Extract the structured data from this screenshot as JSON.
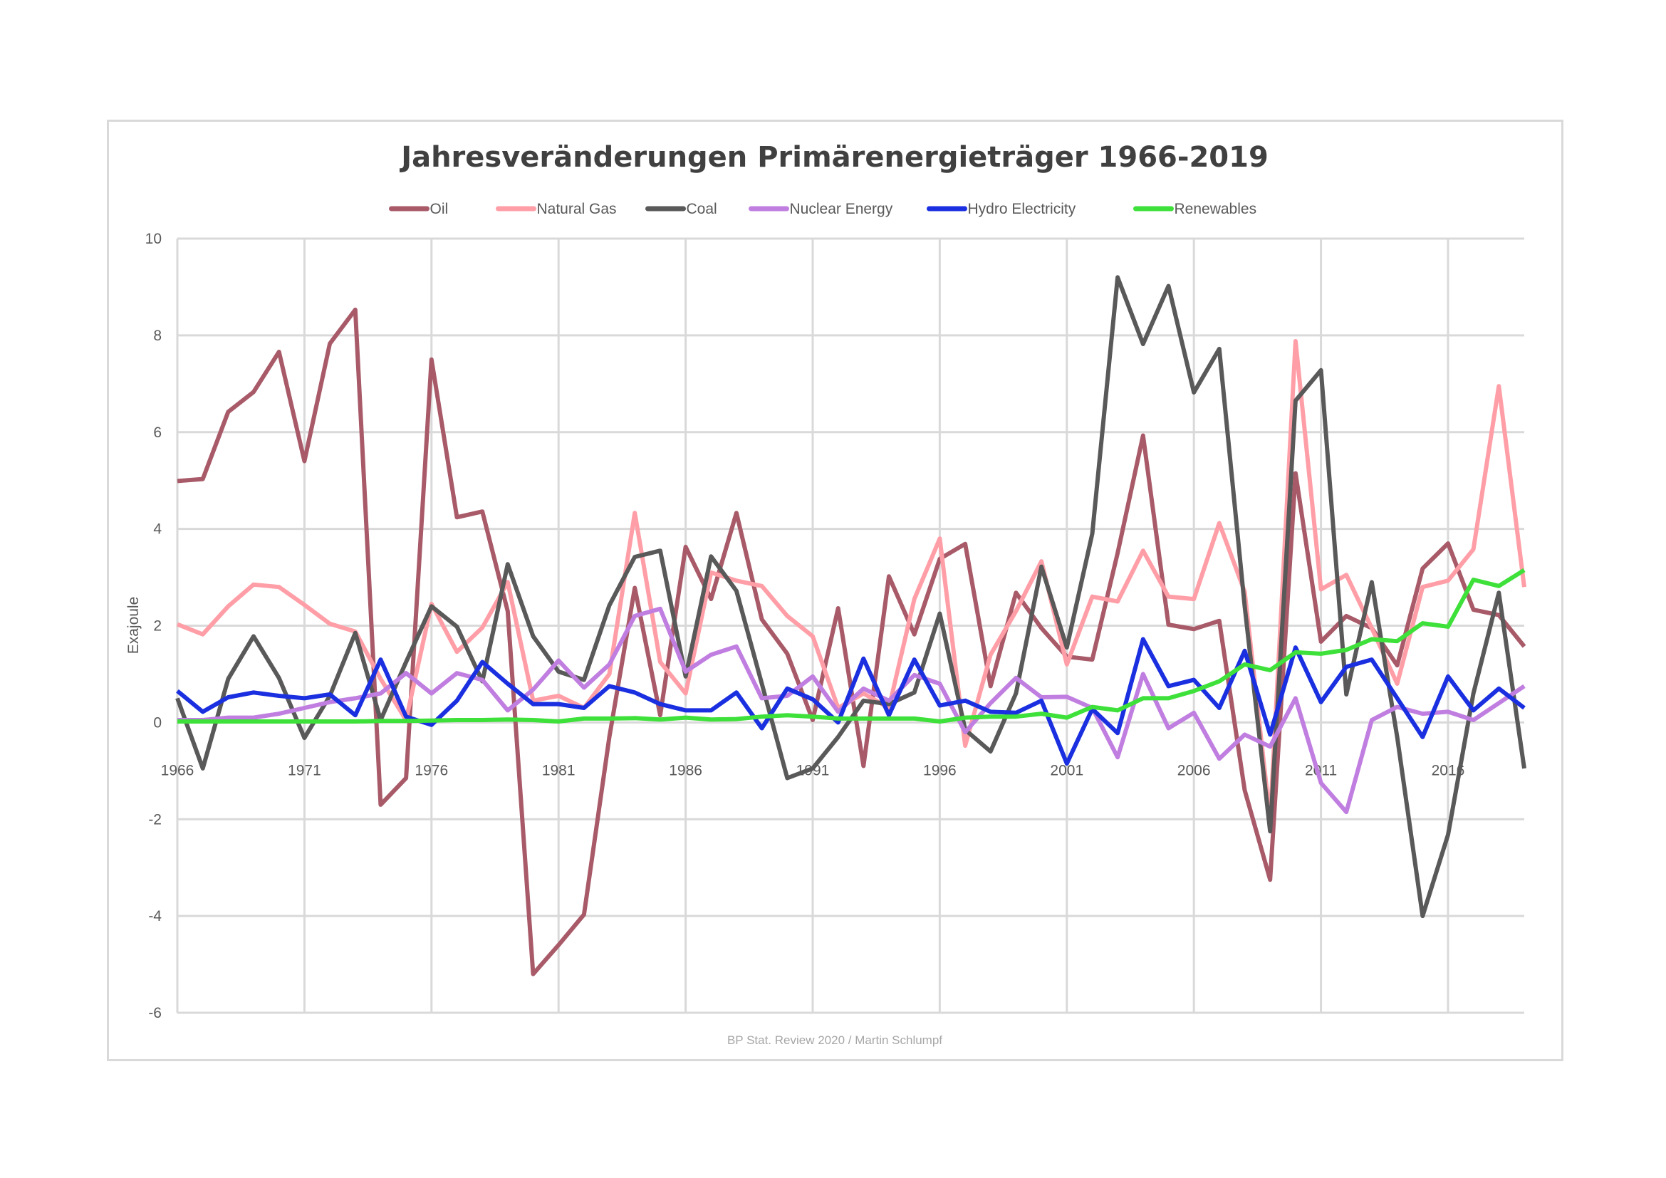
{
  "chart_data": {
    "type": "line",
    "title": "Jahresveränderungen Primärenergieträger 1966-2019",
    "xlabel": "",
    "ylabel": "Exajoule",
    "source": "BP Stat. Review 2020 / Martin Schlumpf",
    "ylim": [
      -6,
      10
    ],
    "yticks": [
      10,
      8,
      6,
      4,
      2,
      0,
      -2,
      -4,
      -6
    ],
    "xlim": [
      1966,
      2019
    ],
    "xticks": [
      1966,
      1971,
      1976,
      1981,
      1986,
      1991,
      1996,
      2001,
      2006,
      2011,
      2016
    ],
    "grid": true,
    "legend": "top",
    "start_year": 1966,
    "series": [
      {
        "name": "Oil",
        "color": "#a85a68",
        "values": [
          4.99,
          5.03,
          6.42,
          6.83,
          7.66,
          5.4,
          7.83,
          8.53,
          -1.7,
          -1.15,
          7.5,
          4.24,
          4.36,
          2.3,
          -5.2,
          -4.6,
          -3.97,
          -0.3,
          2.78,
          0.15,
          3.63,
          2.55,
          4.33,
          2.13,
          1.42,
          0.05,
          2.36,
          -0.9,
          3.02,
          1.82,
          3.38,
          3.69,
          0.75,
          2.68,
          1.95,
          1.36,
          1.3,
          3.5,
          5.93,
          2.02,
          1.93,
          2.1,
          -1.4,
          -3.25,
          5.15,
          1.67,
          2.2,
          1.95,
          1.18,
          3.18,
          3.7,
          2.33,
          2.22,
          1.57
        ]
      },
      {
        "name": "Natural Gas",
        "color": "#ff9ea6",
        "values": [
          2.03,
          1.82,
          2.4,
          2.85,
          2.8,
          2.43,
          2.04,
          1.88,
          0.9,
          0.05,
          2.45,
          1.46,
          1.96,
          2.9,
          0.45,
          0.55,
          0.3,
          1.0,
          4.33,
          1.25,
          0.6,
          3.1,
          2.93,
          2.82,
          2.2,
          1.78,
          0.3,
          0.6,
          0.3,
          2.55,
          3.8,
          -0.48,
          1.4,
          2.3,
          3.33,
          1.2,
          2.6,
          2.5,
          3.55,
          2.6,
          2.55,
          4.12,
          2.7,
          -2.0,
          7.88,
          2.75,
          3.05,
          1.95,
          0.8,
          2.8,
          2.93,
          3.58,
          6.95,
          2.8
        ]
      },
      {
        "name": "Coal",
        "color": "#595959",
        "values": [
          0.5,
          -0.95,
          0.9,
          1.78,
          0.92,
          -0.32,
          0.55,
          1.85,
          0.05,
          1.25,
          2.4,
          1.98,
          0.85,
          3.27,
          1.78,
          1.05,
          0.88,
          2.42,
          3.42,
          3.55,
          0.95,
          3.43,
          2.72,
          0.8,
          -1.15,
          -0.95,
          -0.3,
          0.45,
          0.38,
          0.62,
          2.25,
          -0.15,
          -0.6,
          0.6,
          3.22,
          1.55,
          3.9,
          9.2,
          7.82,
          9.02,
          6.82,
          7.72,
          2.4,
          -2.25,
          6.65,
          7.28,
          0.58,
          2.9,
          -0.3,
          -4.0,
          -2.32,
          0.6,
          2.68,
          -0.95
        ]
      },
      {
        "name": "Nuclear Energy",
        "color": "#c07ee0",
        "values": [
          0.05,
          0.05,
          0.1,
          0.1,
          0.18,
          0.3,
          0.42,
          0.5,
          0.6,
          1.02,
          0.6,
          1.02,
          0.88,
          0.25,
          0.68,
          1.28,
          0.72,
          1.2,
          2.2,
          2.35,
          1.05,
          1.4,
          1.57,
          0.5,
          0.55,
          0.95,
          0.22,
          0.7,
          0.45,
          0.98,
          0.8,
          -0.2,
          0.4,
          0.92,
          0.52,
          0.53,
          0.3,
          -0.72,
          1.0,
          -0.12,
          0.2,
          -0.75,
          -0.25,
          -0.5,
          0.5,
          -1.25,
          -1.85,
          0.05,
          0.32,
          0.18,
          0.22,
          0.05,
          0.4,
          0.75
        ]
      },
      {
        "name": "Hydro Electricity",
        "color": "#1a2fe0",
        "values": [
          0.65,
          0.22,
          0.52,
          0.62,
          0.55,
          0.5,
          0.58,
          0.15,
          1.3,
          0.12,
          -0.05,
          0.45,
          1.25,
          0.8,
          0.38,
          0.38,
          0.3,
          0.75,
          0.62,
          0.38,
          0.25,
          0.25,
          0.62,
          -0.12,
          0.7,
          0.48,
          0.0,
          1.32,
          0.15,
          1.3,
          0.35,
          0.45,
          0.22,
          0.2,
          0.45,
          -0.85,
          0.28,
          -0.22,
          1.72,
          0.75,
          0.88,
          0.3,
          1.48,
          -0.25,
          1.55,
          0.42,
          1.15,
          1.3,
          0.5,
          -0.3,
          0.95,
          0.25,
          0.7,
          0.3
        ]
      },
      {
        "name": "Renewables",
        "color": "#3ee03a",
        "values": [
          0.02,
          0.02,
          0.02,
          0.02,
          0.02,
          0.02,
          0.02,
          0.02,
          0.03,
          0.03,
          0.04,
          0.05,
          0.05,
          0.06,
          0.05,
          0.02,
          0.08,
          0.08,
          0.09,
          0.06,
          0.1,
          0.06,
          0.07,
          0.12,
          0.15,
          0.12,
          0.08,
          0.08,
          0.08,
          0.08,
          0.02,
          0.1,
          0.12,
          0.12,
          0.18,
          0.1,
          0.32,
          0.25,
          0.5,
          0.5,
          0.65,
          0.85,
          1.2,
          1.08,
          1.45,
          1.42,
          1.5,
          1.72,
          1.68,
          2.05,
          1.98,
          2.95,
          2.82,
          3.15
        ]
      }
    ]
  }
}
